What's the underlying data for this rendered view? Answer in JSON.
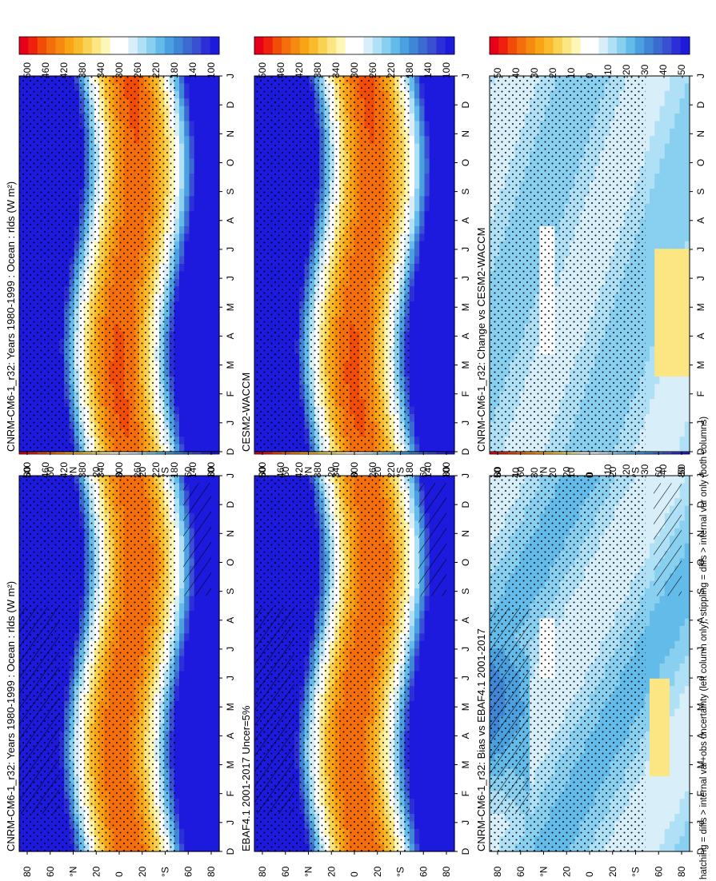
{
  "figure": {
    "footer": "hatching = diffs > internal var+obs uncertainty (left column only); stippling = diffs > internal var only (both columns)",
    "months": [
      "D",
      "J",
      "F",
      "M",
      "A",
      "M",
      "J",
      "J",
      "A",
      "S",
      "O",
      "N",
      "D",
      "J"
    ],
    "lat_ticks": [
      "80",
      "60",
      "°N",
      "20",
      "0",
      "20",
      "°S",
      "60",
      "80"
    ],
    "colors": {
      "abs": [
        "#e8001a",
        "#f0200e",
        "#f24d08",
        "#f46e0c",
        "#f6890f",
        "#f8a414",
        "#f9bb2b",
        "#fad252",
        "#fbe683",
        "#fdf6b6",
        "#ffffff",
        "#ffffff",
        "#d8effa",
        "#b0e0f5",
        "#88cff0",
        "#63bbea",
        "#4ba1e0",
        "#3f86d6",
        "#3b6bd0",
        "#3a50d2",
        "#2c2fd8",
        "#1d1ade"
      ],
      "diff": [
        "#e8001a",
        "#f0200e",
        "#f24d08",
        "#f46e0c",
        "#f6890f",
        "#f8a414",
        "#f9bb2b",
        "#fad252",
        "#fbe683",
        "#fdf6b6",
        "#ffffff",
        "#ffffff",
        "#d8effa",
        "#b0e0f5",
        "#88cff0",
        "#63bbea",
        "#4ba1e0",
        "#3f86d6",
        "#3b6bd0",
        "#3a50d2",
        "#2c2fd8",
        "#1d1ade"
      ]
    }
  },
  "chart_data": [
    {
      "type": "heatmap",
      "panel": "top-left",
      "title": "CNRM-CM6-1_r32: Years 1980-1999 : Ocean : rlds (W m²)",
      "x": "month (D..J)",
      "y": "latitude",
      "colorbar": [
        "500",
        "460",
        "420",
        "380",
        "340",
        "300",
        "260",
        "220",
        "180",
        "140",
        "100"
      ],
      "zrange": [
        80,
        520
      ],
      "summary": "max ~460 near 10°S in Feb–Mar, min ~100 near 80°N in winter",
      "hatching": true,
      "stippling": true
    },
    {
      "type": "heatmap",
      "panel": "top-right",
      "title": "CNRM-CM6-1_r32: Years 1980-1999 : Ocean : rlds (W m²)",
      "x": "month (D..J)",
      "y": "latitude",
      "colorbar": [
        "500",
        "460",
        "420",
        "380",
        "340",
        "300",
        "260",
        "220",
        "180",
        "140",
        "100"
      ],
      "zrange": [
        80,
        520
      ],
      "hatching": false,
      "stippling": true
    },
    {
      "type": "heatmap",
      "panel": "middle-left",
      "title": "EBAF4.1 2001-2017 Uncer=5%",
      "x": "month (D..J)",
      "y": "latitude",
      "colorbar": [
        "500",
        "460",
        "420",
        "380",
        "340",
        "300",
        "260",
        "220",
        "180",
        "140",
        "100"
      ],
      "zrange": [
        80,
        520
      ],
      "hatching": true,
      "stippling": true
    },
    {
      "type": "heatmap",
      "panel": "middle-right",
      "title": "CESM2-WACCM",
      "x": "month (D..J)",
      "y": "latitude",
      "colorbar": [
        "500",
        "460",
        "420",
        "380",
        "340",
        "300",
        "260",
        "220",
        "180",
        "140",
        "100"
      ],
      "zrange": [
        80,
        520
      ],
      "hatching": false,
      "stippling": true
    },
    {
      "type": "heatmap",
      "panel": "bottom-left",
      "title": "CNRM-CM6-1_r32: Bias vs EBAF4.1 2001-2017",
      "x": "month (D..J)",
      "y": "latitude",
      "colorbar": [
        "50",
        "40",
        "30",
        "20",
        "10",
        "0",
        "-10",
        "-20",
        "-30",
        "-40",
        "-50"
      ],
      "zrange": [
        -55,
        55
      ],
      "summary": "mostly negative bias (-10 to -40), strongest in Arctic spring",
      "hatching": true,
      "stippling": true
    },
    {
      "type": "heatmap",
      "panel": "bottom-right",
      "title": "CNRM-CM6-1_r32: Change vs CESM2-WACCM",
      "x": "month (D..J)",
      "y": "latitude",
      "colorbar": [
        "50",
        "40",
        "30",
        "20",
        "10",
        "0",
        "-10",
        "-20",
        "-30",
        "-40",
        "-50"
      ],
      "zrange": [
        -55,
        55
      ],
      "summary": "negative differences almost everywhere, positive near 70°S in autumn",
      "hatching": false,
      "stippling": true
    }
  ]
}
